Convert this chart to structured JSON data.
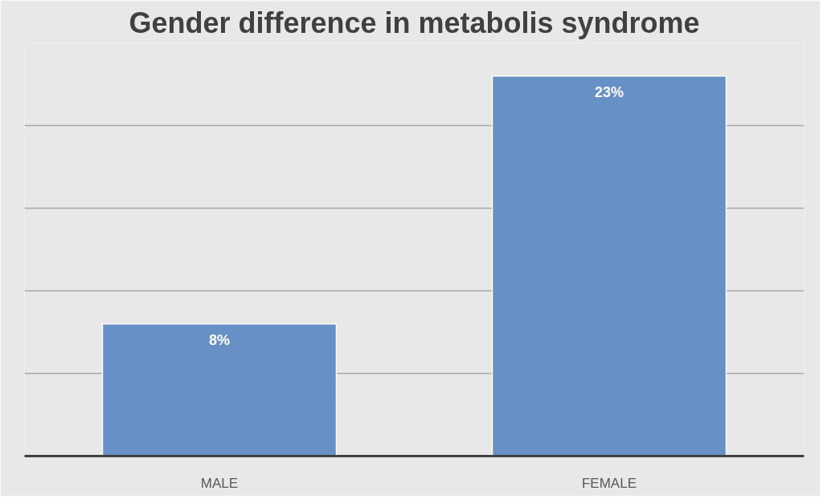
{
  "chart_data": {
    "type": "bar",
    "title": "Gender difference in metabolis syndrome",
    "categories": [
      "MALE",
      "FEMALE"
    ],
    "values": [
      8,
      23
    ],
    "value_labels": [
      "8%",
      "23%"
    ],
    "color": "#6690c6",
    "ylim": [
      0,
      25
    ],
    "yticks": [
      {
        "value": 0,
        "label": null
      },
      {
        "value": 5,
        "label": null
      },
      {
        "value": 10,
        "label": null
      },
      {
        "value": 15,
        "label": null
      },
      {
        "value": 20,
        "label": null
      },
      {
        "value": 25,
        "label": null
      }
    ],
    "grid": "y",
    "tick_labels": "x"
  }
}
